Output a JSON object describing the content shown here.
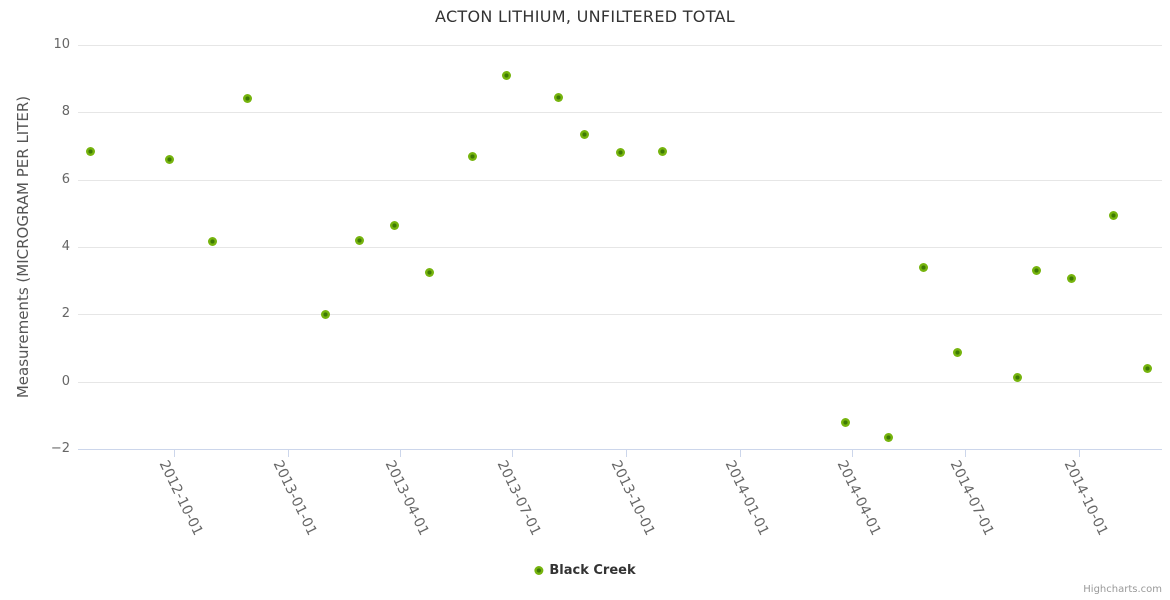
{
  "title": "ACTON LITHIUM, UNFILTERED TOTAL",
  "credits": {
    "label": "Highcharts.com"
  },
  "legend": {
    "label": "Black Creek"
  },
  "colors": {
    "marker_outer": "#76b40e",
    "marker_center": "#3e7a04",
    "gridline": "#e6e6e6",
    "axis_line": "#ccd6eb",
    "tick_label": "#666666",
    "title_text": "#333333",
    "y_title_text": "#555555",
    "credits_text": "#999999"
  },
  "chart_data": {
    "type": "scatter",
    "title": "ACTON LITHIUM, UNFILTERED TOTAL",
    "xlabel": "",
    "ylabel": "Measurements (MICROGRAM PER LITER)",
    "ylim": [
      -2,
      10
    ],
    "y_ticks": [
      10,
      8,
      6,
      4,
      2,
      0,
      -2
    ],
    "x_tick_labels": [
      "2012-10-01",
      "2013-01-01",
      "2013-04-01",
      "2013-07-01",
      "2013-10-01",
      "2014-01-01",
      "2014-04-01",
      "2014-07-01",
      "2014-10-01"
    ],
    "grid": "horizontal-only",
    "legend_position": "bottom-center",
    "series": [
      {
        "name": "Black Creek",
        "color": "#76b40e",
        "points": [
          [
            "2012-07-26",
            6.85
          ],
          [
            "2012-09-27",
            6.6
          ],
          [
            "2012-11-01",
            4.15
          ],
          [
            "2012-11-29",
            8.4
          ],
          [
            "2013-01-31",
            2.0
          ],
          [
            "2013-02-28",
            4.2
          ],
          [
            "2013-03-28",
            4.65
          ],
          [
            "2013-04-25",
            3.25
          ],
          [
            "2013-05-30",
            6.7
          ],
          [
            "2013-06-26",
            9.1
          ],
          [
            "2013-08-07",
            8.45
          ],
          [
            "2013-08-28",
            7.35
          ],
          [
            "2013-09-26",
            6.8
          ],
          [
            "2013-10-30",
            6.85
          ],
          [
            "2014-03-27",
            -1.2
          ],
          [
            "2014-05-01",
            -1.65
          ],
          [
            "2014-05-29",
            3.4
          ],
          [
            "2014-06-25",
            0.88
          ],
          [
            "2014-08-13",
            0.12
          ],
          [
            "2014-08-28",
            3.3
          ],
          [
            "2014-09-25",
            3.05
          ],
          [
            "2014-10-29",
            4.95
          ],
          [
            "2014-11-26",
            0.4
          ]
        ]
      }
    ]
  }
}
